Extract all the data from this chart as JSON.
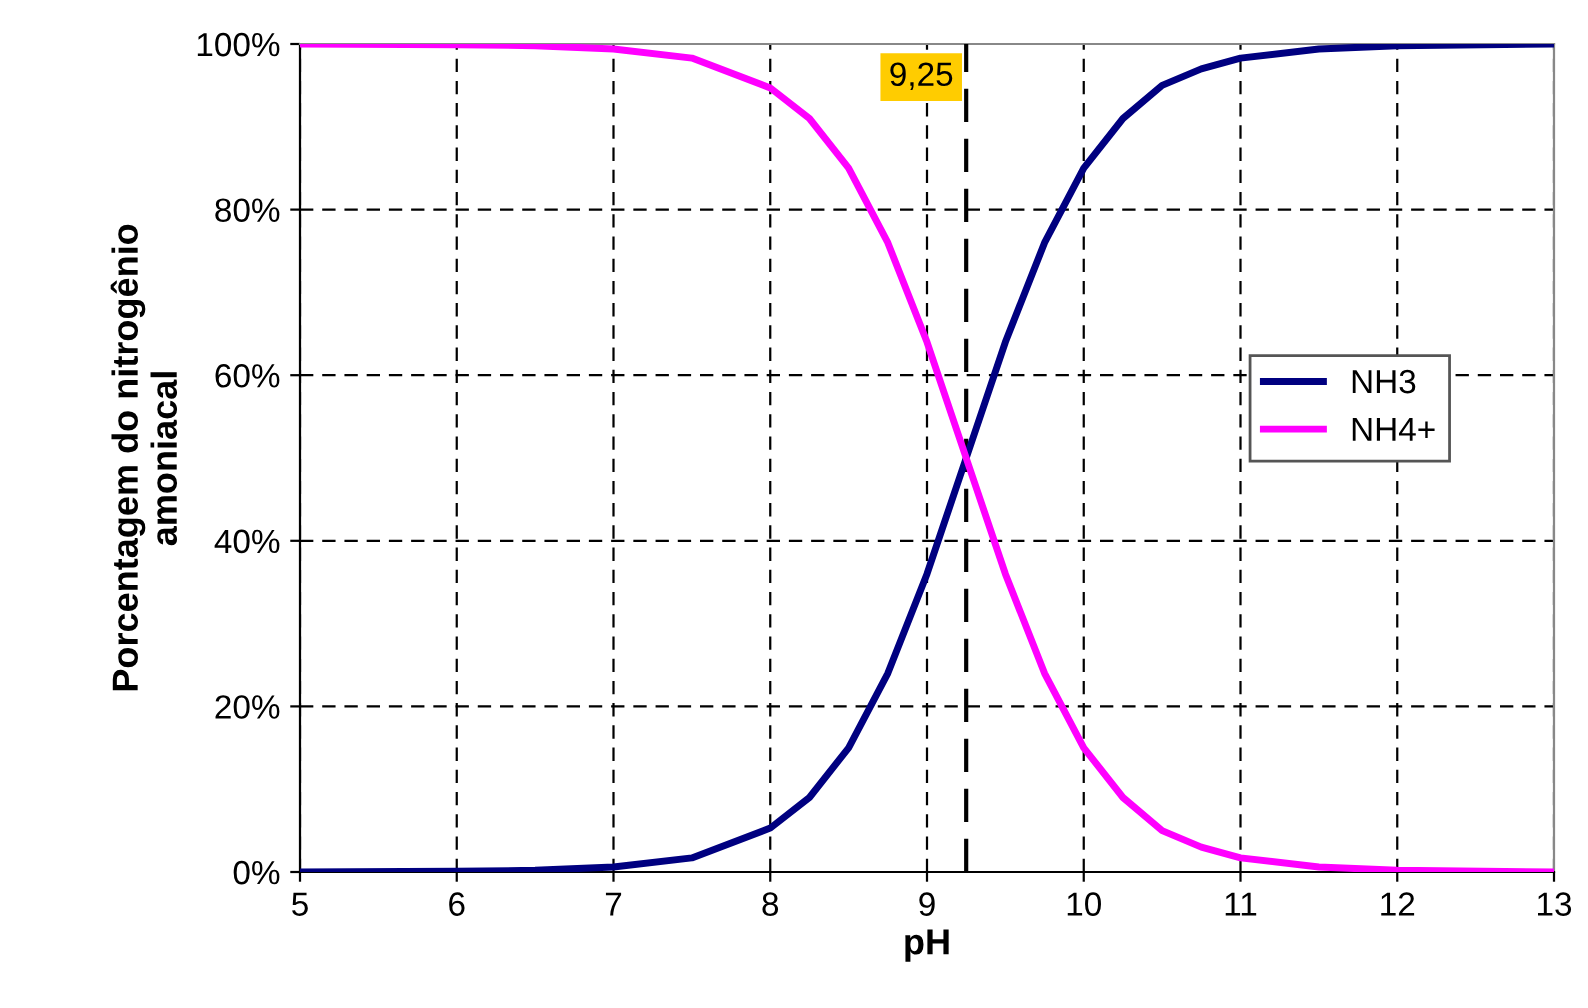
{
  "chart_data": {
    "type": "line",
    "xlabel": "pH",
    "ylabel": "Porcentagem do nitrogênio\namoniacal",
    "x": [
      5,
      6,
      6.5,
      7,
      7.5,
      8,
      8.25,
      8.5,
      8.75,
      9,
      9.25,
      9.5,
      9.75,
      10,
      10.25,
      10.5,
      10.75,
      11,
      11.5,
      12,
      13
    ],
    "series": [
      {
        "name": "NH3",
        "color": "#000080",
        "values": [
          0,
          0.1,
          0.2,
          0.6,
          1.7,
          5.3,
          9,
          15,
          24,
          36,
          50,
          64,
          76,
          85,
          91,
          95,
          97,
          98.3,
          99.4,
          99.8,
          100
        ]
      },
      {
        "name": "NH4+",
        "color": "#ff00ff",
        "values": [
          100,
          99.9,
          99.8,
          99.4,
          98.3,
          94.7,
          91,
          85,
          76,
          64,
          50,
          36,
          24,
          15,
          9,
          5,
          3,
          1.7,
          0.6,
          0.2,
          0
        ]
      }
    ],
    "xlim": [
      5,
      13
    ],
    "xticks": [
      5,
      6,
      7,
      8,
      9,
      10,
      11,
      12,
      13
    ],
    "ylim": [
      0,
      100
    ],
    "yticks": [
      {
        "value": 0,
        "label": "0%"
      },
      {
        "value": 20,
        "label": "20%"
      },
      {
        "value": 40,
        "label": "40%"
      },
      {
        "value": 60,
        "label": "60%"
      },
      {
        "value": 80,
        "label": "80%"
      },
      {
        "value": 100,
        "label": "100%"
      }
    ],
    "ref_lines": [
      {
        "axis": "x",
        "value": 9.25,
        "label": "9,25",
        "color": "#000000",
        "line_style": "dashed"
      }
    ],
    "grid": true,
    "legend": "right",
    "marker": "none",
    "line_style": "solid"
  }
}
